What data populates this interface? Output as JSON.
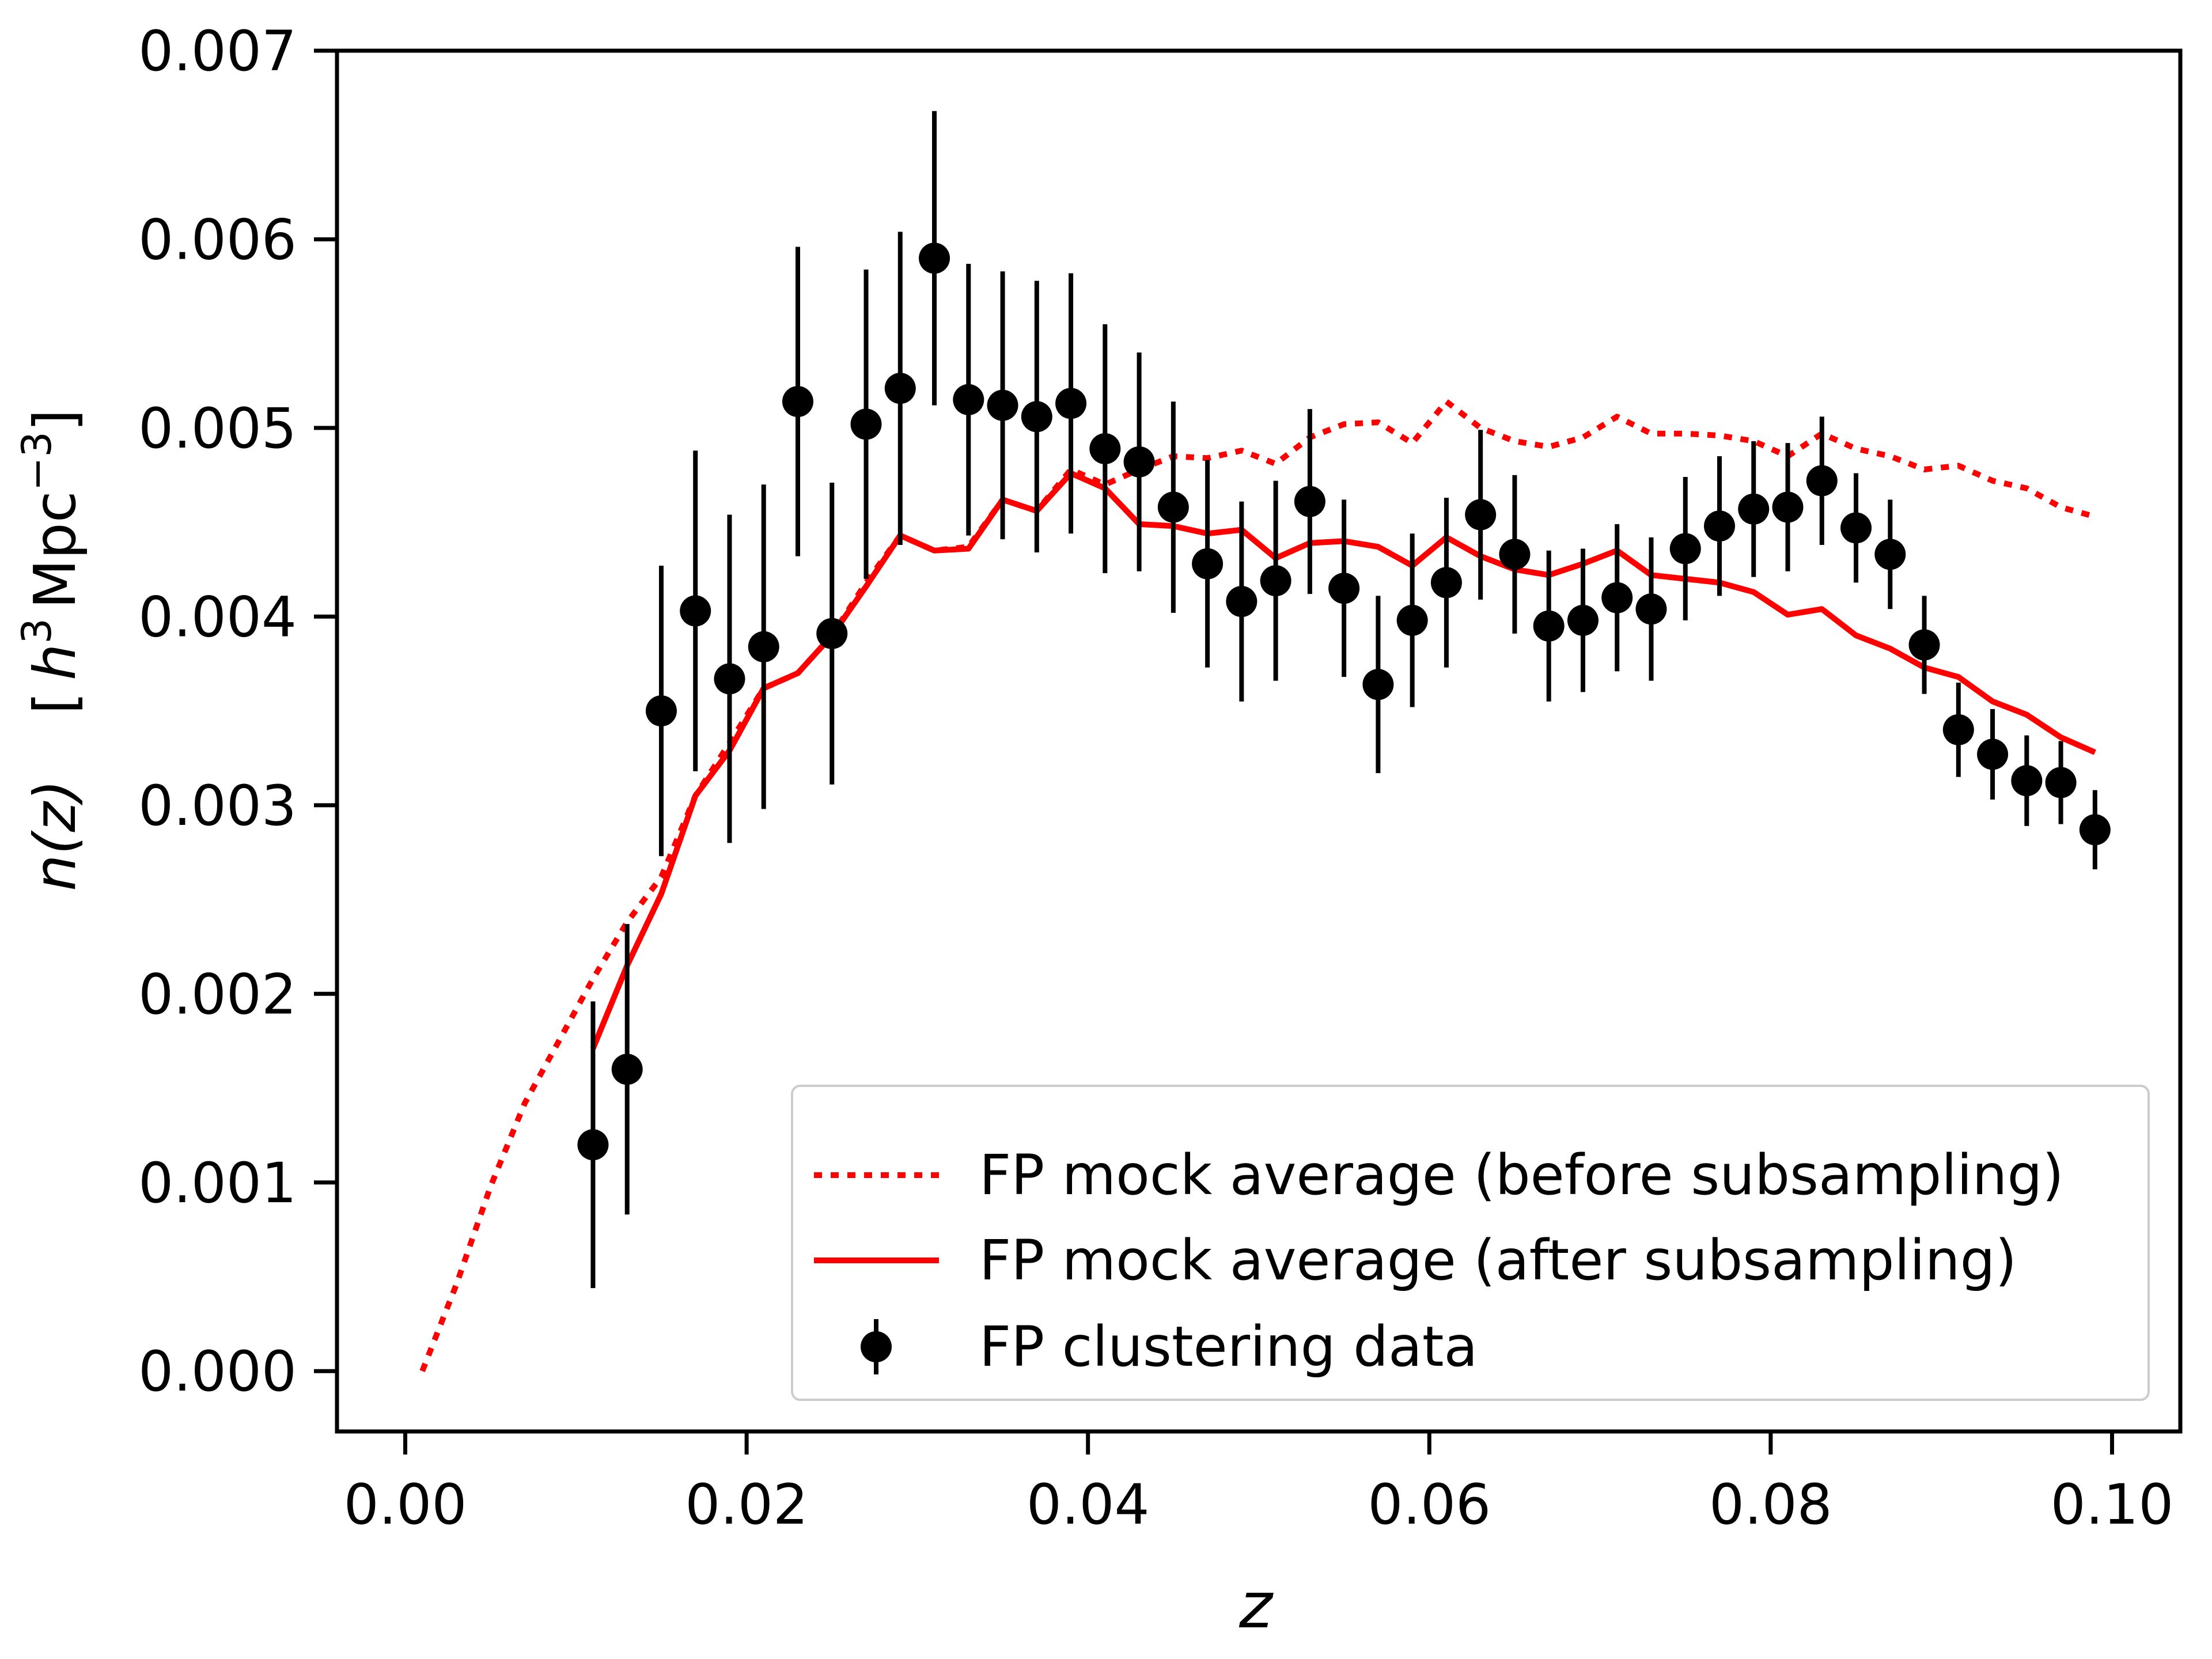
{
  "chart_data": {
    "type": "line",
    "xlabel": "z",
    "ylabel": {
      "main": "n(z)",
      "unit_open": "[",
      "unit_h": "h",
      "unit_h_exp": "3",
      "unit_mpc": "Mpc",
      "unit_mpc_exp": "−3",
      "unit_close": "]"
    },
    "xlim": [
      -0.004,
      0.104
    ],
    "ylim": [
      -0.00032,
      0.007
    ],
    "xticks": [
      0.0,
      0.02,
      0.04,
      0.06,
      0.08,
      0.1
    ],
    "xtick_labels": [
      "0.00",
      "0.02",
      "0.04",
      "0.06",
      "0.08",
      "0.10"
    ],
    "yticks": [
      0.0,
      0.001,
      0.002,
      0.003,
      0.004,
      0.005,
      0.006,
      0.007
    ],
    "ytick_labels": [
      "0.000",
      "0.001",
      "0.002",
      "0.003",
      "0.004",
      "0.005",
      "0.006",
      "0.007"
    ],
    "legend_position": "lower-right",
    "series": [
      {
        "name": "FP mock average (before subsampling)",
        "style": "dotted",
        "color": "#ff0000",
        "x": [
          0.001,
          0.003,
          0.005,
          0.007,
          0.009,
          0.011,
          0.013,
          0.015,
          0.017,
          0.019,
          0.021,
          0.023,
          0.025,
          0.027,
          0.029,
          0.031,
          0.033,
          0.035,
          0.037,
          0.039,
          0.041,
          0.043,
          0.045,
          0.047,
          0.049,
          0.051,
          0.053,
          0.055,
          0.057,
          0.059,
          0.061,
          0.063,
          0.065,
          0.067,
          0.069,
          0.071,
          0.073,
          0.075,
          0.077,
          0.079,
          0.081,
          0.083,
          0.085,
          0.087,
          0.089,
          0.091,
          0.093,
          0.095,
          0.097,
          0.099
        ],
        "y": [
          0.0,
          0.00046,
          0.00098,
          0.00142,
          0.00175,
          0.00208,
          0.00238,
          0.00262,
          0.00305,
          0.00333,
          0.00362,
          0.0037,
          0.0039,
          0.00418,
          0.00443,
          0.00435,
          0.00437,
          0.00462,
          0.00456,
          0.00478,
          0.0047,
          0.00478,
          0.00485,
          0.00484,
          0.00488,
          0.00481,
          0.00495,
          0.00502,
          0.00503,
          0.00492,
          0.00514,
          0.005,
          0.00493,
          0.0049,
          0.00495,
          0.00506,
          0.00497,
          0.00497,
          0.00496,
          0.00493,
          0.00485,
          0.00497,
          0.00489,
          0.00485,
          0.00478,
          0.0048,
          0.00472,
          0.00468,
          0.00458,
          0.00453
        ]
      },
      {
        "name": "FP mock average (after subsampling)",
        "style": "solid",
        "color": "#ff0000",
        "x": [
          0.011,
          0.013,
          0.015,
          0.017,
          0.019,
          0.021,
          0.023,
          0.025,
          0.027,
          0.029,
          0.031,
          0.033,
          0.035,
          0.037,
          0.039,
          0.041,
          0.043,
          0.045,
          0.047,
          0.049,
          0.051,
          0.053,
          0.055,
          0.057,
          0.059,
          0.061,
          0.063,
          0.065,
          0.067,
          0.069,
          0.071,
          0.073,
          0.075,
          0.077,
          0.079,
          0.081,
          0.083,
          0.085,
          0.087,
          0.089,
          0.091,
          0.093,
          0.095,
          0.097,
          0.099
        ],
        "y": [
          0.00171,
          0.00215,
          0.00253,
          0.00305,
          0.00329,
          0.00362,
          0.0037,
          0.0039,
          0.00416,
          0.00443,
          0.00435,
          0.00436,
          0.00462,
          0.00456,
          0.00476,
          0.00468,
          0.00449,
          0.00448,
          0.00444,
          0.00446,
          0.00431,
          0.00439,
          0.0044,
          0.00437,
          0.00427,
          0.00442,
          0.00432,
          0.00425,
          0.00422,
          0.00428,
          0.00435,
          0.00422,
          0.0042,
          0.00418,
          0.00413,
          0.00401,
          0.00404,
          0.0039,
          0.00383,
          0.00373,
          0.00368,
          0.00355,
          0.00348,
          0.00336,
          0.00328
        ]
      },
      {
        "name": "FP clustering data",
        "style": "errorbar",
        "color": "#000000",
        "x": [
          0.011,
          0.013,
          0.015,
          0.017,
          0.019,
          0.021,
          0.023,
          0.025,
          0.027,
          0.029,
          0.031,
          0.033,
          0.035,
          0.037,
          0.039,
          0.041,
          0.043,
          0.045,
          0.047,
          0.049,
          0.051,
          0.053,
          0.055,
          0.057,
          0.059,
          0.061,
          0.063,
          0.065,
          0.067,
          0.069,
          0.071,
          0.073,
          0.075,
          0.077,
          0.079,
          0.081,
          0.083,
          0.085,
          0.087,
          0.089,
          0.091,
          0.093,
          0.095,
          0.097,
          0.099
        ],
        "y": [
          0.0012,
          0.0016,
          0.0035,
          0.00403,
          0.00367,
          0.00384,
          0.00514,
          0.00391,
          0.00502,
          0.00521,
          0.0059,
          0.00515,
          0.00512,
          0.00506,
          0.00513,
          0.00489,
          0.00482,
          0.00458,
          0.00428,
          0.00408,
          0.00419,
          0.00461,
          0.00415,
          0.00364,
          0.00398,
          0.00418,
          0.00454,
          0.00433,
          0.00395,
          0.00398,
          0.0041,
          0.00404,
          0.00436,
          0.00448,
          0.00457,
          0.00458,
          0.00472,
          0.00447,
          0.00433,
          0.00385,
          0.0034,
          0.00327,
          0.00313,
          0.00312,
          0.00287
        ],
        "yerr": [
          0.00076,
          0.00077,
          0.00077,
          0.00085,
          0.00087,
          0.00086,
          0.00082,
          0.0008,
          0.00082,
          0.00083,
          0.00078,
          0.00072,
          0.00071,
          0.00072,
          0.00069,
          0.00066,
          0.00058,
          0.00056,
          0.00055,
          0.00053,
          0.00053,
          0.00049,
          0.00047,
          0.00047,
          0.00046,
          0.00045,
          0.00045,
          0.00042,
          0.0004,
          0.00038,
          0.00039,
          0.00038,
          0.00038,
          0.00037,
          0.00036,
          0.00034,
          0.00034,
          0.00029,
          0.00029,
          0.00026,
          0.00025,
          0.00024,
          0.00024,
          0.00022,
          0.00021
        ]
      }
    ]
  }
}
